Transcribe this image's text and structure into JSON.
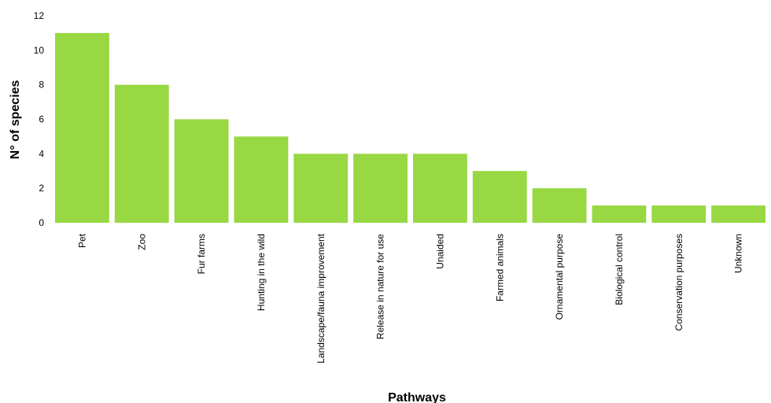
{
  "chart_data": {
    "type": "bar",
    "title": "",
    "xlabel": "Pathways",
    "ylabel": "N° of species",
    "ylim": [
      0,
      12
    ],
    "yticks": [
      0,
      2,
      4,
      6,
      8,
      10,
      12
    ],
    "grid": false,
    "legend": "none",
    "bar_color": "#97d843",
    "categories": [
      "Pet",
      "Zoo",
      "Fur farms",
      "Hunting in the wild",
      "Landscape/fauna improvement",
      "Release in nature for use",
      "Unaided",
      "Farmed animals",
      "Ornamental purpose",
      "Biological control",
      "Conservation purposes",
      "Unknown"
    ],
    "values": [
      11,
      8,
      6,
      5,
      4,
      4,
      4,
      3,
      2,
      1,
      1,
      1
    ]
  }
}
